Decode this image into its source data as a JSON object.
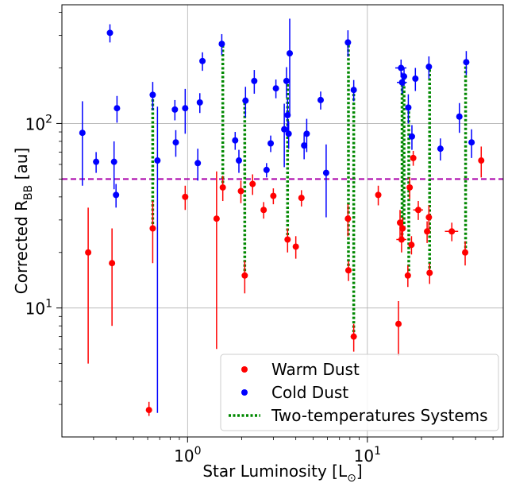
{
  "chart_data": {
    "type": "scatter",
    "xscale": "log",
    "yscale": "log",
    "xlim": [
      0.2,
      57
    ],
    "ylim": [
      2.0,
      440
    ],
    "grid": true,
    "xlabel": {
      "main": "Star Luminosity [L",
      "sub": "⊙",
      "close": "]"
    },
    "ylabel": {
      "main": "Corrected R",
      "sub": "BB",
      "close": " [au]"
    },
    "x_ticks": [
      {
        "value": 1,
        "base": "10",
        "exp": "0"
      },
      {
        "value": 10,
        "base": "10",
        "exp": "1"
      }
    ],
    "y_ticks": [
      {
        "value": 10,
        "base": "10",
        "exp": "1"
      },
      {
        "value": 100,
        "base": "10",
        "exp": "2"
      }
    ],
    "threshold": {
      "value": 50,
      "color": "#aa00aa"
    },
    "legend_placement": "lower-right",
    "legend": [
      {
        "label": "Warm Dust",
        "marker": "dot",
        "color": "#ff0000"
      },
      {
        "label": "Cold Dust",
        "marker": "dot",
        "color": "#0000ff"
      },
      {
        "label": "Two-temperatures Systems",
        "marker": "dotted-line",
        "color": "#008800"
      }
    ],
    "series": [
      {
        "key": "warm",
        "color": "#ff0000",
        "points": [
          {
            "x": 0.28,
            "y": 20,
            "yerr": [
              15,
              15
            ]
          },
          {
            "x": 0.38,
            "y": 17.5,
            "yerr": [
              9.5,
              9.5
            ]
          },
          {
            "x": 0.61,
            "y": 2.8,
            "yerr": [
              0.2,
              0.3
            ]
          },
          {
            "x": 0.64,
            "y": 27,
            "yerr": [
              9.5,
              11
            ]
          },
          {
            "x": 0.97,
            "y": 40,
            "yerr": [
              6,
              6
            ]
          },
          {
            "x": 1.45,
            "y": 30.5,
            "yerr": [
              24.5,
              24.5
            ]
          },
          {
            "x": 1.57,
            "y": 45,
            "yerr": [
              7,
              7
            ]
          },
          {
            "x": 1.98,
            "y": 43,
            "yerr": [
              6,
              6
            ]
          },
          {
            "x": 2.08,
            "y": 15,
            "yerr": [
              3,
              3
            ]
          },
          {
            "x": 2.3,
            "y": 47,
            "yerr": [
              6,
              6
            ]
          },
          {
            "x": 2.65,
            "y": 34,
            "yerr": [
              3.5,
              3.5
            ]
          },
          {
            "x": 3.0,
            "y": 40.5,
            "yerr": [
              4,
              4
            ]
          },
          {
            "x": 3.6,
            "y": 23.5,
            "yerr": [
              3.5,
              3.5
            ]
          },
          {
            "x": 4.0,
            "y": 21.5,
            "yerr": [
              3,
              3
            ]
          },
          {
            "x": 4.3,
            "y": 39.5,
            "yerr": [
              4,
              4
            ]
          },
          {
            "x": 7.8,
            "y": 30.5,
            "yerr": [
              6,
              6
            ]
          },
          {
            "x": 7.85,
            "y": 16,
            "yerr": [
              2,
              2
            ]
          },
          {
            "x": 8.4,
            "y": 7.0,
            "yerr": [
              1.2,
              1.2
            ]
          },
          {
            "x": 11.5,
            "y": 41,
            "yerr": [
              5,
              5
            ]
          },
          {
            "x": 14.9,
            "y": 8.2,
            "yerr": [
              2.7,
              2.7
            ]
          },
          {
            "x": 15.2,
            "y": 29,
            "yerr": [
              5,
              5
            ]
          },
          {
            "x": 15.5,
            "y": 23.5,
            "yerr": [
              3.5,
              3.5
            ],
            "xerr": [
              1.0,
              1.0
            ]
          },
          {
            "x": 15.7,
            "y": 27,
            "yerr": [
              4,
              4
            ]
          },
          {
            "x": 16.8,
            "y": 15,
            "yerr": [
              2,
              2
            ]
          },
          {
            "x": 17.2,
            "y": 45,
            "yerr": [
              6,
              6
            ]
          },
          {
            "x": 17.6,
            "y": 22,
            "yerr": [
              2.5,
              2.5
            ]
          },
          {
            "x": 18.0,
            "y": 65,
            "yerr": [
              6,
              6
            ]
          },
          {
            "x": 19.2,
            "y": 34,
            "yerr": [
              4,
              4
            ],
            "xerr": [
              1.2,
              1.2
            ]
          },
          {
            "x": 21.5,
            "y": 26,
            "yerr": [
              3.5,
              3.5
            ]
          },
          {
            "x": 22.0,
            "y": 31,
            "yerr": [
              5,
              5
            ]
          },
          {
            "x": 22.2,
            "y": 15.5,
            "yerr": [
              2,
              2
            ]
          },
          {
            "x": 29.5,
            "y": 26,
            "yerr": [
              3,
              3
            ],
            "xerr": [
              2.5,
              2.5
            ]
          },
          {
            "x": 35.0,
            "y": 20,
            "yerr": [
              3,
              3
            ]
          },
          {
            "x": 43.0,
            "y": 63,
            "yerr": [
              12,
              12
            ]
          }
        ]
      },
      {
        "key": "cold",
        "color": "#0000ff",
        "points": [
          {
            "x": 0.26,
            "y": 89,
            "yerr": [
              43,
              43
            ]
          },
          {
            "x": 0.31,
            "y": 62,
            "yerr": [
              8,
              8
            ]
          },
          {
            "x": 0.37,
            "y": 310,
            "yerr": [
              35,
              35
            ]
          },
          {
            "x": 0.39,
            "y": 62,
            "yerr": [
              18,
              18
            ]
          },
          {
            "x": 0.4,
            "y": 41,
            "yerr": [
              6,
              6
            ]
          },
          {
            "x": 0.405,
            "y": 121,
            "yerr": [
              20,
              20
            ]
          },
          {
            "x": 0.64,
            "y": 143,
            "yerr": [
              25,
              25
            ]
          },
          {
            "x": 0.68,
            "y": 63,
            "yerr": [
              60.3,
              60.3
            ]
          },
          {
            "x": 0.85,
            "y": 119,
            "yerr": [
              15,
              15
            ]
          },
          {
            "x": 0.86,
            "y": 79,
            "yerr": [
              13,
              13
            ]
          },
          {
            "x": 0.97,
            "y": 121,
            "yerr": [
              33,
              33
            ]
          },
          {
            "x": 1.14,
            "y": 61,
            "yerr": [
              12,
              12
            ]
          },
          {
            "x": 1.17,
            "y": 130,
            "yerr": [
              16,
              16
            ]
          },
          {
            "x": 1.21,
            "y": 218,
            "yerr": [
              25,
              25
            ]
          },
          {
            "x": 1.55,
            "y": 270,
            "yerr": [
              35,
              35
            ]
          },
          {
            "x": 1.84,
            "y": 81,
            "yerr": [
              9,
              9
            ]
          },
          {
            "x": 1.93,
            "y": 63,
            "yerr": [
              9,
              9
            ]
          },
          {
            "x": 2.1,
            "y": 133,
            "yerr": [
              25,
              25
            ]
          },
          {
            "x": 2.35,
            "y": 170,
            "yerr": [
              25,
              25
            ]
          },
          {
            "x": 2.75,
            "y": 56,
            "yerr": [
              5,
              5
            ]
          },
          {
            "x": 2.9,
            "y": 78,
            "yerr": [
              8,
              8
            ]
          },
          {
            "x": 3.1,
            "y": 155,
            "yerr": [
              18,
              18
            ]
          },
          {
            "x": 3.45,
            "y": 93,
            "yerr": [
              35,
              35
            ]
          },
          {
            "x": 3.55,
            "y": 170,
            "yerr": [
              32,
              32
            ]
          },
          {
            "x": 3.6,
            "y": 111,
            "yerr": [
              25,
              25
            ]
          },
          {
            "x": 3.65,
            "y": 88,
            "yerr": [
              15,
              15
            ]
          },
          {
            "x": 3.7,
            "y": 240,
            "yerr": [
              130,
              130
            ]
          },
          {
            "x": 4.45,
            "y": 76,
            "yerr": [
              12,
              12
            ]
          },
          {
            "x": 4.6,
            "y": 88,
            "yerr": [
              18,
              18
            ]
          },
          {
            "x": 5.5,
            "y": 134,
            "yerr": [
              15,
              15
            ]
          },
          {
            "x": 5.9,
            "y": 54,
            "yerr": [
              23,
              23
            ]
          },
          {
            "x": 7.8,
            "y": 275,
            "yerr": [
              45,
              45
            ]
          },
          {
            "x": 8.4,
            "y": 152,
            "yerr": [
              20,
              20
            ]
          },
          {
            "x": 15.4,
            "y": 200,
            "yerr": [
              22,
              22
            ],
            "xerr": [
              1.1,
              1.1
            ]
          },
          {
            "x": 15.6,
            "y": 167,
            "yerr": [
              22,
              22
            ],
            "xerr": [
              1.0,
              1.0
            ]
          },
          {
            "x": 16.0,
            "y": 180,
            "yerr": [
              20,
              20
            ]
          },
          {
            "x": 16.9,
            "y": 122,
            "yerr": [
              22,
              22
            ]
          },
          {
            "x": 17.7,
            "y": 85,
            "yerr": [
              13,
              13
            ]
          },
          {
            "x": 18.5,
            "y": 175,
            "yerr": [
              25,
              25
            ]
          },
          {
            "x": 22.0,
            "y": 203,
            "yerr": [
              28,
              28
            ]
          },
          {
            "x": 25.5,
            "y": 73,
            "yerr": [
              10,
              10
            ]
          },
          {
            "x": 32.5,
            "y": 109,
            "yerr": [
              20,
              20
            ]
          },
          {
            "x": 35.5,
            "y": 215,
            "yerr": [
              32,
              32
            ]
          },
          {
            "x": 38.0,
            "y": 79,
            "yerr": [
              14,
              14
            ]
          }
        ]
      }
    ],
    "two_temperature_links": [
      {
        "x": 0.64,
        "y1": 27,
        "y2": 143
      },
      {
        "x": 1.57,
        "y1": 45,
        "y2": 270
      },
      {
        "x": 2.08,
        "y1": 15,
        "y2": 133
      },
      {
        "x": 3.6,
        "y1": 23.5,
        "y2": 170
      },
      {
        "x": 7.85,
        "y1": 16,
        "y2": 275
      },
      {
        "x": 8.4,
        "y1": 7.0,
        "y2": 152
      },
      {
        "x": 15.6,
        "y1": 23.5,
        "y2": 167
      },
      {
        "x": 16.0,
        "y1": 27,
        "y2": 180
      },
      {
        "x": 17.0,
        "y1": 15,
        "y2": 122
      },
      {
        "x": 22.2,
        "y1": 15.5,
        "y2": 203
      },
      {
        "x": 35.2,
        "y1": 20,
        "y2": 215
      }
    ]
  }
}
